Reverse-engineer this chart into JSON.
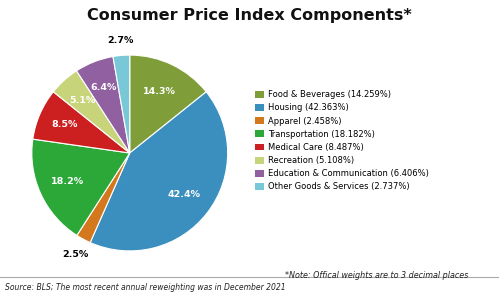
{
  "title": "Consumer Price Index Components*",
  "legend_labels": [
    "Food & Beverages (14.259%)",
    "Housing (42.363%)",
    "Apparel (2.458%)",
    "Transportation (18.182%)",
    "Medical Care (8.487%)",
    "Recreation (5.108%)",
    "Education & Communication (6.406%)",
    "Other Goods & Services (2.737%)"
  ],
  "values": [
    14.259,
    42.363,
    2.458,
    18.182,
    8.487,
    5.108,
    6.406,
    2.737
  ],
  "pct_labels": [
    "14.3%",
    "42.4%",
    "2.5%",
    "18.2%",
    "8.5%",
    "5.1%",
    "6.4%",
    "2.7%"
  ],
  "pct_colors": [
    "white",
    "white",
    "black",
    "white",
    "white",
    "white",
    "white",
    "black"
  ],
  "colors": [
    "#7f9e3a",
    "#3b8fbe",
    "#d4781e",
    "#2ba838",
    "#cc2020",
    "#c8d47a",
    "#9060a0",
    "#79c8d8"
  ],
  "note": "*Note: Offical weights are to 3 decimal places",
  "source": "Source: BLS; The most recent annual reweighting was in December 2021",
  "startangle": 90,
  "pct_radii": [
    0.7,
    0.7,
    1.18,
    0.7,
    0.72,
    0.72,
    0.72,
    1.15
  ],
  "background_color": "#ffffff"
}
